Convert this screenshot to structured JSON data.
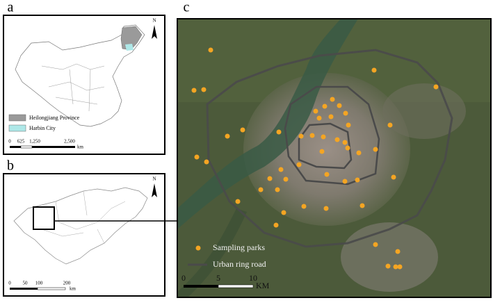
{
  "panels": {
    "a": {
      "label": "a",
      "north": "N",
      "legend": [
        "Heilongjiang Province",
        "Harbin City"
      ],
      "scale": [
        "0",
        "625",
        "1,250",
        "2,500"
      ],
      "scale_unit": "km"
    },
    "b": {
      "label": "b",
      "north": "N",
      "scale": [
        "0",
        "50",
        "100",
        "200"
      ],
      "scale_unit": "km"
    },
    "c": {
      "label": "c",
      "legend": [
        "Sampling parks",
        "Urban ring road"
      ],
      "scale": [
        "0",
        "5",
        "10"
      ],
      "scale_unit": "KM"
    }
  }
}
